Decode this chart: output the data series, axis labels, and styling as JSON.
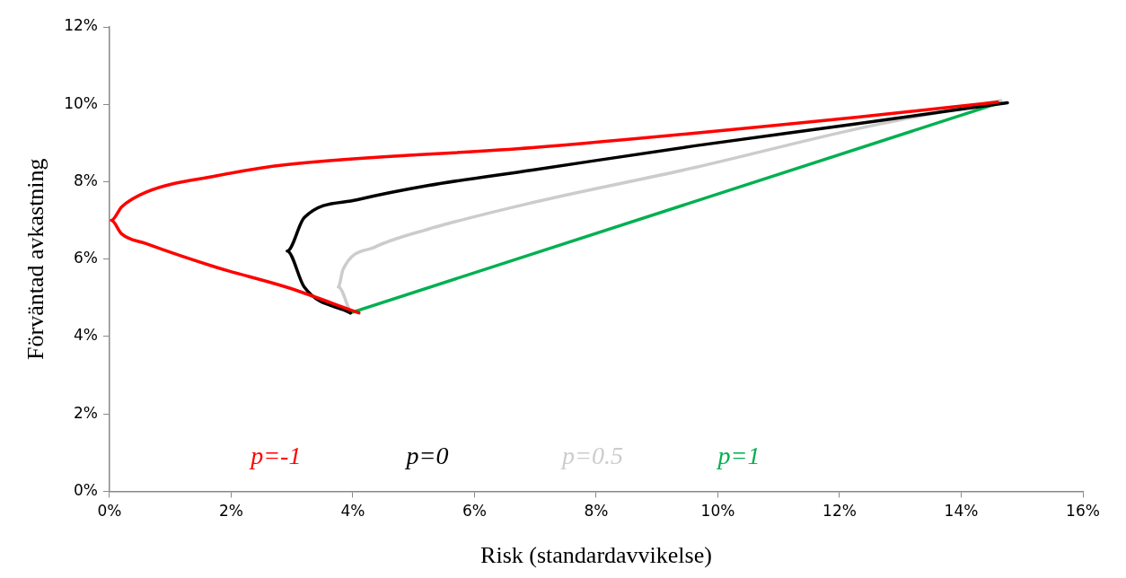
{
  "chart_data": {
    "type": "line",
    "xlabel": "Risk (standardavvikelse)",
    "ylabel": "Förväntad avkastning",
    "xlim": [
      0,
      16
    ],
    "ylim": [
      0,
      12
    ],
    "xticks": [
      {
        "value": 0,
        "label": "0%"
      },
      {
        "value": 2,
        "label": "2%"
      },
      {
        "value": 4,
        "label": "4%"
      },
      {
        "value": 6,
        "label": "6%"
      },
      {
        "value": 8,
        "label": "8%"
      },
      {
        "value": 10,
        "label": "10%"
      },
      {
        "value": 12,
        "label": "12%"
      },
      {
        "value": 14,
        "label": "14%"
      },
      {
        "value": 16,
        "label": "16%"
      }
    ],
    "yticks": [
      {
        "value": 0,
        "label": "0%"
      },
      {
        "value": 2,
        "label": "2%"
      },
      {
        "value": 4,
        "label": "4%"
      },
      {
        "value": 6,
        "label": "6%"
      },
      {
        "value": 8,
        "label": "8%"
      },
      {
        "value": 10,
        "label": "10%"
      },
      {
        "value": 12,
        "label": "12%"
      }
    ],
    "grid": false,
    "legend": "bottom",
    "marker": "none",
    "line_style": "solid",
    "series": [
      {
        "name": "p=-1",
        "color": "#ff0000",
        "x": [
          4.1,
          2.9,
          1.75,
          0.6,
          0.2,
          0.03,
          0.2,
          0.6,
          1.75,
          2.9,
          6.95,
          12.3,
          14.6
        ],
        "values": [
          4.61,
          5.28,
          5.79,
          6.4,
          6.65,
          7.0,
          7.35,
          7.73,
          8.15,
          8.44,
          8.88,
          9.67,
          10.06
        ]
      },
      {
        "name": "p=0",
        "color": "#000000",
        "x": [
          3.96,
          3.2,
          2.92,
          3.2,
          4.06,
          5.23,
          6.95,
          9.63,
          12.3,
          14.76
        ],
        "values": [
          4.61,
          5.28,
          6.21,
          7.07,
          7.53,
          7.9,
          8.3,
          8.93,
          9.5,
          10.04
        ]
      },
      {
        "name": "p=0.5",
        "color": "#cccccc",
        "x": [
          3.96,
          3.76,
          3.84,
          4.36,
          5.23,
          6.95,
          9.63,
          12.3,
          14.65
        ],
        "values": [
          4.61,
          5.28,
          5.74,
          6.31,
          6.77,
          7.46,
          8.37,
          9.37,
          10.1
        ]
      },
      {
        "name": "p=1",
        "color": "#00b050",
        "x": [
          3.96,
          14.65
        ],
        "values": [
          4.61,
          10.05
        ]
      }
    ]
  }
}
